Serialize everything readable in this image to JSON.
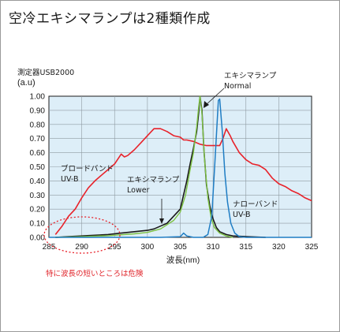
{
  "chart_data": {
    "type": "line",
    "title": "空冷エキシマランプは2種類作成",
    "instrument_label": "測定器USB2000",
    "ylabel": "(a.u)",
    "xlabel": "波長(nm)",
    "xlim": [
      285,
      325
    ],
    "ylim": [
      0,
      1
    ],
    "x_ticks": [
      "285",
      "290",
      "295",
      "300",
      "305",
      "310",
      "315",
      "320",
      "325"
    ],
    "y_ticks": [
      "0.00",
      "0.10",
      "0.20",
      "0.30",
      "0.40",
      "0.50",
      "0.60",
      "0.70",
      "0.80",
      "0.90",
      "1.00"
    ],
    "grid": true,
    "background_color": "#ddeef8",
    "series": [
      {
        "name": "ブロードバンドUV-B",
        "color": "#e8222a",
        "points": [
          [
            286,
            0.02
          ],
          [
            287,
            0.08
          ],
          [
            288,
            0.15
          ],
          [
            289,
            0.2
          ],
          [
            290,
            0.28
          ],
          [
            291,
            0.35
          ],
          [
            292,
            0.4
          ],
          [
            293,
            0.44
          ],
          [
            294,
            0.48
          ],
          [
            295,
            0.52
          ],
          [
            296,
            0.59
          ],
          [
            296.5,
            0.57
          ],
          [
            297,
            0.58
          ],
          [
            298,
            0.62
          ],
          [
            299,
            0.67
          ],
          [
            300,
            0.72
          ],
          [
            301,
            0.77
          ],
          [
            302,
            0.77
          ],
          [
            303,
            0.75
          ],
          [
            304,
            0.72
          ],
          [
            305,
            0.71
          ],
          [
            305.5,
            0.69
          ],
          [
            306,
            0.69
          ],
          [
            307,
            0.68
          ],
          [
            308,
            0.66
          ],
          [
            309,
            0.65
          ],
          [
            310,
            0.65
          ],
          [
            311,
            0.65
          ],
          [
            311.5,
            0.7
          ],
          [
            312,
            0.77
          ],
          [
            312.6,
            0.72
          ],
          [
            313,
            0.68
          ],
          [
            314,
            0.6
          ],
          [
            315,
            0.55
          ],
          [
            316,
            0.52
          ],
          [
            317,
            0.51
          ],
          [
            318,
            0.48
          ],
          [
            319,
            0.42
          ],
          [
            320,
            0.38
          ],
          [
            321,
            0.36
          ],
          [
            322,
            0.33
          ],
          [
            323,
            0.31
          ],
          [
            324,
            0.28
          ],
          [
            325,
            0.26
          ]
        ]
      },
      {
        "name": "エキシマランプLower",
        "color": "#1a1a1a",
        "points": [
          [
            286,
            0.0
          ],
          [
            288,
            0.005
          ],
          [
            290,
            0.01
          ],
          [
            292,
            0.015
          ],
          [
            294,
            0.02
          ],
          [
            296,
            0.03
          ],
          [
            298,
            0.04
          ],
          [
            300,
            0.05
          ],
          [
            301,
            0.06
          ],
          [
            302,
            0.08
          ],
          [
            303,
            0.1
          ],
          [
            304,
            0.15
          ],
          [
            305,
            0.2
          ],
          [
            305.6,
            0.32
          ],
          [
            306,
            0.4
          ],
          [
            306.5,
            0.52
          ],
          [
            307,
            0.63
          ],
          [
            307.5,
            0.75
          ],
          [
            307.8,
            0.88
          ],
          [
            308,
            1.0
          ],
          [
            308.3,
            0.9
          ],
          [
            308.6,
            0.62
          ],
          [
            309,
            0.37
          ],
          [
            309.5,
            0.22
          ],
          [
            310,
            0.13
          ],
          [
            310.5,
            0.07
          ],
          [
            311,
            0.04
          ],
          [
            312,
            0.02
          ],
          [
            313,
            0.01
          ],
          [
            315,
            0.005
          ],
          [
            318,
            0.0
          ]
        ]
      },
      {
        "name": "エキシマランプNormal",
        "color": "#7dc242",
        "points": [
          [
            286,
            0.0
          ],
          [
            290,
            0.005
          ],
          [
            294,
            0.012
          ],
          [
            298,
            0.025
          ],
          [
            300,
            0.035
          ],
          [
            302,
            0.06
          ],
          [
            304,
            0.12
          ],
          [
            305,
            0.18
          ],
          [
            305.8,
            0.3
          ],
          [
            306.5,
            0.48
          ],
          [
            307,
            0.6
          ],
          [
            307.5,
            0.78
          ],
          [
            307.8,
            0.92
          ],
          [
            308,
            1.0
          ],
          [
            308.3,
            0.88
          ],
          [
            308.7,
            0.55
          ],
          [
            309.2,
            0.28
          ],
          [
            309.7,
            0.14
          ],
          [
            310.2,
            0.07
          ],
          [
            311,
            0.03
          ],
          [
            312,
            0.01
          ],
          [
            313,
            0.0
          ]
        ]
      },
      {
        "name": "ナローバンドUV-B",
        "color": "#1f7dc4",
        "points": [
          [
            285,
            0.0
          ],
          [
            302,
            0.0
          ],
          [
            305,
            0.005
          ],
          [
            305.5,
            0.03
          ],
          [
            306,
            0.01
          ],
          [
            307,
            0.0
          ],
          [
            308.5,
            0.0
          ],
          [
            309.2,
            0.02
          ],
          [
            309.8,
            0.15
          ],
          [
            310.3,
            0.55
          ],
          [
            310.8,
            0.97
          ],
          [
            311,
            0.98
          ],
          [
            311.4,
            0.75
          ],
          [
            311.8,
            0.45
          ],
          [
            312.2,
            0.25
          ],
          [
            312.7,
            0.1
          ],
          [
            313.3,
            0.03
          ],
          [
            314,
            0.005
          ],
          [
            315,
            0.0
          ],
          [
            325,
            0.0
          ]
        ]
      }
    ],
    "annotations": {
      "broad": "ブロードバンド\nUV-B",
      "lower": "エキシマランプ\nLower",
      "normal": "エキシマランプ\nNormal",
      "narrow": "ナローバンド\nUV-B",
      "warning": "特に波長の短いところは危険"
    }
  }
}
